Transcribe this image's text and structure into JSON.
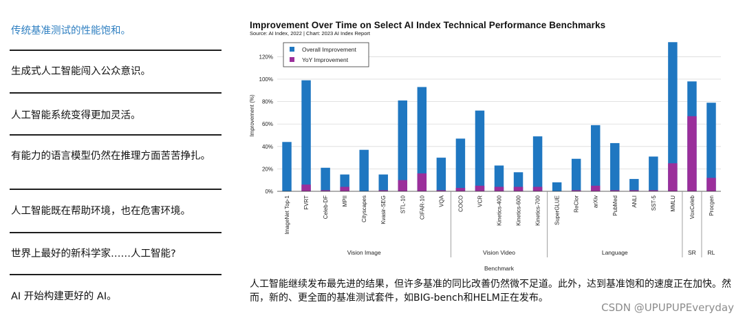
{
  "sidebar": {
    "items": [
      {
        "label": "传统基准测试的性能饱和。",
        "active": true
      },
      {
        "label": "生成式人工智能闯入公众意识。",
        "active": false
      },
      {
        "label": "人工智能系统变得更加灵活。",
        "active": false
      },
      {
        "label": "有能力的语言模型仍然在推理方面苦苦挣扎。",
        "active": false
      },
      {
        "label": "人工智能既在帮助环境，也在危害环境。",
        "active": false
      },
      {
        "label": "世界上最好的新科学家……人工智能?",
        "active": false
      },
      {
        "label": "AI 开始构建更好的 AI。",
        "active": false
      }
    ]
  },
  "chart_data": {
    "type": "bar",
    "title": "Improvement Over Time on Select AI Index Technical Performance Benchmarks",
    "subtitle": "Source: AI Index, 2022 | Chart: 2023 AI Index Report",
    "xlabel": "Benchmark",
    "ylabel": "Improvement (%)",
    "ylim": [
      0,
      135
    ],
    "yticks": [
      0,
      20,
      40,
      60,
      80,
      100,
      120
    ],
    "ytick_labels": [
      "0%",
      "20%",
      "40%",
      "60%",
      "80%",
      "100%",
      "120%"
    ],
    "grid": true,
    "legend_position": "top-left",
    "categories": [
      "ImageNet Top-1",
      "FVRT",
      "Celeb-DF",
      "MPII",
      "Cityscapes",
      "Kvasir-SEG",
      "STL-10",
      "CIFAR-10",
      "VQA",
      "COCO",
      "VCR",
      "Kinetics-400",
      "Kinetics-600",
      "Kinetics-700",
      "SuperGLUE",
      "ReClor",
      "arXiv",
      "PubMed",
      "ANLI",
      "SST-5",
      "MMLU",
      "VoxCeleb",
      "Procgen"
    ],
    "series": [
      {
        "name": "Overall Improvement",
        "color": "#1f77c1",
        "values": [
          44,
          99,
          21,
          15,
          37,
          15,
          81,
          93,
          30,
          47,
          72,
          23,
          17,
          49,
          8,
          29,
          59,
          43,
          11,
          31,
          133,
          98,
          79
        ]
      },
      {
        "name": "YoY Improvement",
        "color": "#9b2f9b",
        "values": [
          0,
          6,
          1,
          4,
          0,
          1,
          10,
          16,
          1,
          3,
          5,
          4,
          4,
          4,
          0,
          1,
          5,
          1,
          1,
          1,
          25,
          67,
          12
        ]
      }
    ],
    "groups": [
      {
        "label": "Vision Image",
        "start": 0,
        "end": 8
      },
      {
        "label": "Vision Video",
        "start": 9,
        "end": 13
      },
      {
        "label": "Language",
        "start": 14,
        "end": 20
      },
      {
        "label": "SR",
        "start": 21,
        "end": 21
      },
      {
        "label": "RL",
        "start": 22,
        "end": 22
      }
    ]
  },
  "caption": "人工智能继续发布最先进的结果，但许多基准的同比改善仍然微不足道。此外，达到基准饱和的速度正在加快。然而，新的、更全面的基准测试套件，如BIG-bench和HELM正在发布。",
  "watermark": "CSDN @UPUPUPEveryday"
}
